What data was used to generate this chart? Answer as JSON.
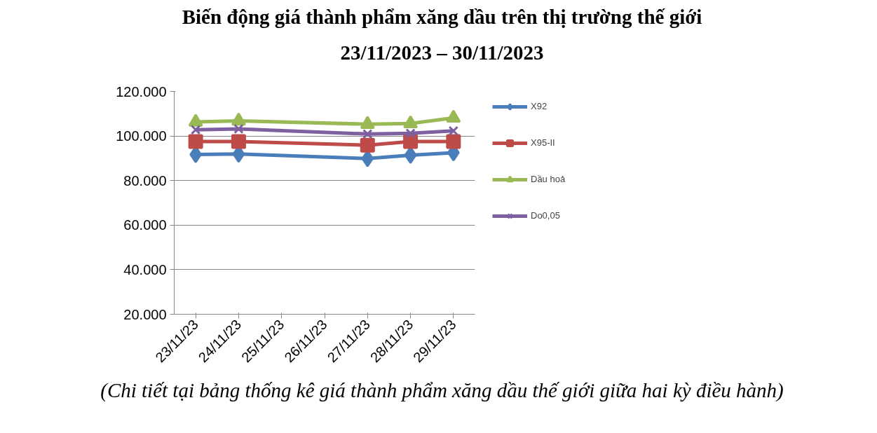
{
  "chart_data": {
    "type": "line",
    "title": "Biến động giá thành phẩm xăng dầu trên thị trường thế giới",
    "subtitle": "23/11/2023 – 30/11/2023",
    "x": [
      "2023-11-23",
      "2023-11-24",
      "2023-11-27",
      "2023-11-28",
      "2023-11-29"
    ],
    "xlim": [
      "2023-11-22T12:00",
      "2023-11-29T12:00"
    ],
    "xticks": [
      {
        "value": "2023-11-23",
        "label": "23/11/23"
      },
      {
        "value": "2023-11-24",
        "label": "24/11/23"
      },
      {
        "value": "2023-11-25",
        "label": "25/11/23"
      },
      {
        "value": "2023-11-26",
        "label": "26/11/23"
      },
      {
        "value": "2023-11-27",
        "label": "27/11/23"
      },
      {
        "value": "2023-11-28",
        "label": "28/11/23"
      },
      {
        "value": "2023-11-29",
        "label": "29/11/23"
      }
    ],
    "ylim": [
      20000,
      120000
    ],
    "yticks": [
      {
        "value": 20000,
        "label": "20.000"
      },
      {
        "value": 40000,
        "label": "40.000"
      },
      {
        "value": 60000,
        "label": "60.000"
      },
      {
        "value": 80000,
        "label": "80.000"
      },
      {
        "value": 100000,
        "label": "100.000"
      },
      {
        "value": 120000,
        "label": "120.000"
      }
    ],
    "series": [
      {
        "name": "X92",
        "color": "#4a7ebb",
        "marker": "diamond",
        "values": [
          91700,
          91900,
          89900,
          91400,
          92500
        ]
      },
      {
        "name": "X95-II",
        "color": "#be4b48",
        "marker": "square",
        "values": [
          97500,
          97500,
          95900,
          97500,
          97500
        ]
      },
      {
        "name": "Dầu hoả",
        "color": "#98b954",
        "marker": "triangle",
        "values": [
          106300,
          106800,
          105300,
          105600,
          108100
        ]
      },
      {
        "name": "Do0,05",
        "color": "#7d60a0",
        "marker": "cross",
        "values": [
          102800,
          103200,
          100900,
          101200,
          102300
        ]
      }
    ],
    "grid": "y",
    "legend": "right",
    "line_style": "solid",
    "annotations": [
      "(Chi tiết tại bảng thống kê giá thành phẩm xăng dầu thế giới giữa hai kỳ điều hành)"
    ]
  }
}
